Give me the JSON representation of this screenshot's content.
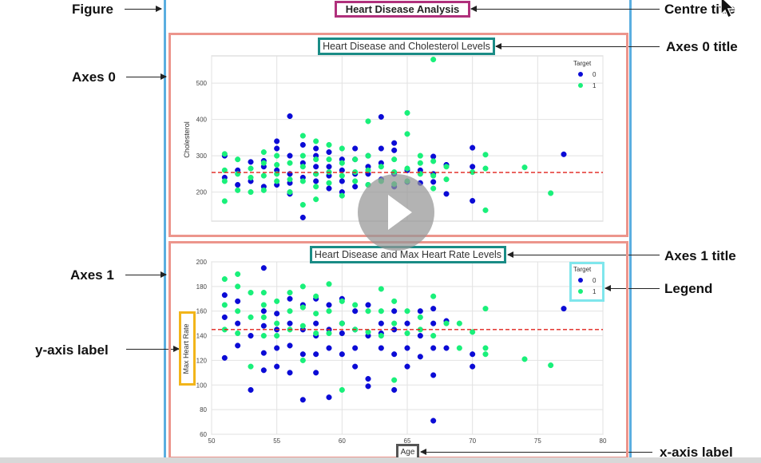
{
  "annotations": {
    "figure": "Figure",
    "centre_title": "Centre title",
    "axes0": "Axes 0",
    "axes0_title": "Axes 0 title",
    "axes1": "Axes 1",
    "axes1_title": "Axes 1 title",
    "legend": "Legend",
    "ylabel": "y-axis label",
    "xlabel": "x-axis label"
  },
  "figure_title": "Heart Disease Analysis",
  "colors": {
    "target0": "#0b0bd6",
    "target1": "#19f07a",
    "mean_line": "#e0201a"
  },
  "chart_data": [
    {
      "type": "scatter",
      "title": "Heart Disease and Cholesterol Levels",
      "xlabel": "",
      "ylabel": "Cholesterol",
      "xlim": [
        50,
        80
      ],
      "ylim": [
        120,
        575
      ],
      "xticks": [
        50,
        55,
        60,
        65,
        70,
        75,
        80
      ],
      "yticks": [
        200,
        300,
        400,
        500
      ],
      "grid": true,
      "legend": {
        "title": "Target",
        "position": "top-right",
        "entries": [
          "0",
          "1"
        ]
      },
      "mean_line": 254,
      "series": [
        {
          "name": "0",
          "points": [
            [
              51,
              240
            ],
            [
              51,
              300
            ],
            [
              52,
              220
            ],
            [
              52,
              260
            ],
            [
              53,
              283
            ],
            [
              53,
              230
            ],
            [
              54,
              270
            ],
            [
              54,
              215
            ],
            [
              54,
              286
            ],
            [
              55,
              340
            ],
            [
              55,
              320
            ],
            [
              55,
              260
            ],
            [
              55,
              220
            ],
            [
              56,
              409
            ],
            [
              56,
              300
            ],
            [
              56,
              250
            ],
            [
              56,
              225
            ],
            [
              56,
              195
            ],
            [
              57,
              330
            ],
            [
              57,
              280
            ],
            [
              57,
              240
            ],
            [
              57,
              130
            ],
            [
              58,
              320
            ],
            [
              58,
              300
            ],
            [
              58,
              270
            ],
            [
              58,
              250
            ],
            [
              58,
              230
            ],
            [
              59,
              310
            ],
            [
              59,
              270
            ],
            [
              59,
              245
            ],
            [
              59,
              210
            ],
            [
              60,
              290
            ],
            [
              60,
              260
            ],
            [
              60,
              230
            ],
            [
              60,
              200
            ],
            [
              61,
              320
            ],
            [
              61,
              290
            ],
            [
              61,
              250
            ],
            [
              61,
              215
            ],
            [
              62,
              300
            ],
            [
              62,
              270
            ],
            [
              62,
              250
            ],
            [
              62,
              220
            ],
            [
              63,
              407
            ],
            [
              63,
              320
            ],
            [
              63,
              280
            ],
            [
              63,
              235
            ],
            [
              64,
              335
            ],
            [
              64,
              315
            ],
            [
              64,
              250
            ],
            [
              64,
              215
            ],
            [
              65,
              260
            ],
            [
              65,
              228
            ],
            [
              66,
              260
            ],
            [
              66,
              225
            ],
            [
              67,
              298
            ],
            [
              67,
              250
            ],
            [
              67,
              228
            ],
            [
              68,
              275
            ],
            [
              68,
              195
            ],
            [
              70,
              322
            ],
            [
              70,
              270
            ],
            [
              70,
              176
            ],
            [
              77,
              304
            ]
          ]
        },
        {
          "name": "1",
          "points": [
            [
              51,
              305
            ],
            [
              51,
              260
            ],
            [
              51,
              230
            ],
            [
              51,
              175
            ],
            [
              52,
              290
            ],
            [
              52,
              250
            ],
            [
              52,
              205
            ],
            [
              53,
              265
            ],
            [
              53,
              240
            ],
            [
              53,
              200
            ],
            [
              54,
              310
            ],
            [
              54,
              280
            ],
            [
              54,
              245
            ],
            [
              54,
              205
            ],
            [
              55,
              300
            ],
            [
              55,
              275
            ],
            [
              55,
              250
            ],
            [
              55,
              230
            ],
            [
              56,
              280
            ],
            [
              56,
              235
            ],
            [
              56,
              200
            ],
            [
              57,
              355
            ],
            [
              57,
              300
            ],
            [
              57,
              270
            ],
            [
              57,
              230
            ],
            [
              57,
              165
            ],
            [
              58,
              340
            ],
            [
              58,
              290
            ],
            [
              58,
              250
            ],
            [
              58,
              215
            ],
            [
              58,
              180
            ],
            [
              59,
              330
            ],
            [
              59,
              290
            ],
            [
              59,
              255
            ],
            [
              59,
              225
            ],
            [
              60,
              320
            ],
            [
              60,
              280
            ],
            [
              60,
              245
            ],
            [
              60,
              190
            ],
            [
              61,
              290
            ],
            [
              61,
              255
            ],
            [
              61,
              230
            ],
            [
              62,
              395
            ],
            [
              62,
              300
            ],
            [
              62,
              260
            ],
            [
              62,
              220
            ],
            [
              63,
              270
            ],
            [
              63,
              230
            ],
            [
              64,
              290
            ],
            [
              64,
              255
            ],
            [
              64,
              222
            ],
            [
              65,
              418
            ],
            [
              65,
              360
            ],
            [
              65,
              265
            ],
            [
              65,
              230
            ],
            [
              66,
              300
            ],
            [
              66,
              280
            ],
            [
              66,
              250
            ],
            [
              67,
              565
            ],
            [
              67,
              285
            ],
            [
              67,
              245
            ],
            [
              67,
              210
            ],
            [
              68,
              270
            ],
            [
              68,
              235
            ],
            [
              70,
              255
            ],
            [
              71,
              303
            ],
            [
              71,
              265
            ],
            [
              71,
              150
            ],
            [
              74,
              268
            ],
            [
              76,
              197
            ]
          ]
        }
      ]
    },
    {
      "type": "scatter",
      "title": "Heart Disease and Max Heart Rate Levels",
      "xlabel": "Age",
      "ylabel": "Max Heart Rate",
      "xlim": [
        50,
        80
      ],
      "ylim": [
        60,
        200
      ],
      "xticks": [
        50,
        55,
        60,
        65,
        70,
        75,
        80
      ],
      "yticks": [
        60,
        80,
        100,
        120,
        140,
        160,
        180,
        200
      ],
      "grid": true,
      "legend": {
        "title": "Target",
        "position": "top-right",
        "entries": [
          "0",
          "1"
        ]
      },
      "mean_line": 145,
      "series": [
        {
          "name": "0",
          "points": [
            [
              51,
              173
            ],
            [
              51,
              155
            ],
            [
              51,
              122
            ],
            [
              52,
              168
            ],
            [
              52,
              150
            ],
            [
              52,
              132
            ],
            [
              53,
              140
            ],
            [
              53,
              96
            ],
            [
              54,
              195
            ],
            [
              54,
              160
            ],
            [
              54,
              148
            ],
            [
              54,
              126
            ],
            [
              54,
              112
            ],
            [
              55,
              158
            ],
            [
              55,
              145
            ],
            [
              55,
              130
            ],
            [
              55,
              115
            ],
            [
              56,
              170
            ],
            [
              56,
              150
            ],
            [
              56,
              132
            ],
            [
              56,
              110
            ],
            [
              57,
              165
            ],
            [
              57,
              145
            ],
            [
              57,
              125
            ],
            [
              57,
              88
            ],
            [
              58,
              170
            ],
            [
              58,
              150
            ],
            [
              58,
              140
            ],
            [
              58,
              125
            ],
            [
              58,
              110
            ],
            [
              59,
              165
            ],
            [
              59,
              145
            ],
            [
              59,
              130
            ],
            [
              59,
              90
            ],
            [
              60,
              170
            ],
            [
              60,
              150
            ],
            [
              60,
              142
            ],
            [
              60,
              125
            ],
            [
              61,
              160
            ],
            [
              61,
              145
            ],
            [
              61,
              130
            ],
            [
              61,
              115
            ],
            [
              62,
              165
            ],
            [
              62,
              140
            ],
            [
              62,
              105
            ],
            [
              62,
              99
            ],
            [
              63,
              150
            ],
            [
              63,
              142
            ],
            [
              63,
              130
            ],
            [
              64,
              160
            ],
            [
              64,
              145
            ],
            [
              64,
              125
            ],
            [
              64,
              96
            ],
            [
              65,
              150
            ],
            [
              65,
              130
            ],
            [
              65,
              115
            ],
            [
              66,
              160
            ],
            [
              66,
              140
            ],
            [
              66,
              123
            ],
            [
              67,
              162
            ],
            [
              67,
              150
            ],
            [
              67,
              130
            ],
            [
              67,
              108
            ],
            [
              67,
              71
            ],
            [
              68,
              152
            ],
            [
              68,
              130
            ],
            [
              70,
              125
            ],
            [
              70,
              115
            ],
            [
              77,
              162
            ]
          ]
        },
        {
          "name": "1",
          "points": [
            [
              51,
              186
            ],
            [
              51,
              165
            ],
            [
              51,
              145
            ],
            [
              52,
              190
            ],
            [
              52,
              180
            ],
            [
              52,
              160
            ],
            [
              52,
              142
            ],
            [
              53,
              175
            ],
            [
              53,
              155
            ],
            [
              53,
              115
            ],
            [
              54,
              175
            ],
            [
              54,
              165
            ],
            [
              54,
              155
            ],
            [
              54,
              140
            ],
            [
              55,
              168
            ],
            [
              55,
              150
            ],
            [
              55,
              140
            ],
            [
              56,
              175
            ],
            [
              56,
              160
            ],
            [
              56,
              145
            ],
            [
              57,
              180
            ],
            [
              57,
              163
            ],
            [
              57,
              148
            ],
            [
              57,
              120
            ],
            [
              58,
              172
            ],
            [
              58,
              158
            ],
            [
              58,
              142
            ],
            [
              59,
              182
            ],
            [
              59,
              160
            ],
            [
              59,
              142
            ],
            [
              60,
              168
            ],
            [
              60,
              150
            ],
            [
              60,
              96
            ],
            [
              61,
              165
            ],
            [
              61,
              145
            ],
            [
              62,
              160
            ],
            [
              62,
              143
            ],
            [
              63,
              178
            ],
            [
              63,
              160
            ],
            [
              63,
              140
            ],
            [
              64,
              168
            ],
            [
              64,
              150
            ],
            [
              64,
              104
            ],
            [
              65,
              160
            ],
            [
              65,
              142
            ],
            [
              66,
              155
            ],
            [
              66,
              145
            ],
            [
              67,
              172
            ],
            [
              67,
              140
            ],
            [
              68,
              150
            ],
            [
              69,
              150
            ],
            [
              69,
              130
            ],
            [
              70,
              143
            ],
            [
              71,
              162
            ],
            [
              71,
              130
            ],
            [
              71,
              125
            ],
            [
              74,
              121
            ],
            [
              76,
              116
            ]
          ]
        }
      ]
    }
  ]
}
